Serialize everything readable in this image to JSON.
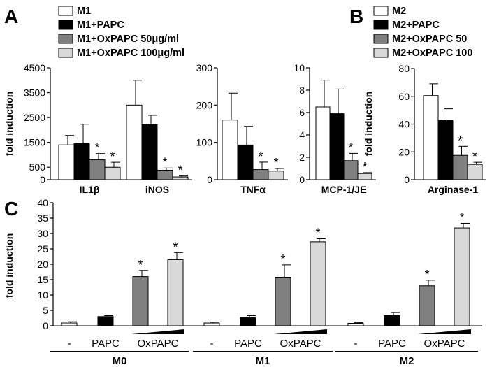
{
  "panels": {
    "A": "A",
    "B": "B",
    "C": "C"
  },
  "colors": {
    "white": "#ffffff",
    "black": "#000000",
    "darkgray": "#808080",
    "lightgray": "#d9d9d9"
  },
  "legend_A": [
    {
      "label": "M1",
      "color": "white"
    },
    {
      "label": "M1+PAPC",
      "color": "black"
    },
    {
      "label": "M1+OxPAPC 50μg/ml",
      "color": "darkgray"
    },
    {
      "label": "M1+OxPAPC 100μg/ml",
      "color": "lightgray"
    }
  ],
  "legend_B": [
    {
      "label": "M2",
      "color": "white"
    },
    {
      "label": "M2+PAPC",
      "color": "black"
    },
    {
      "label": "M2+OxPAPC 50",
      "color": "darkgray"
    },
    {
      "label": "M2+OxPAPC 100",
      "color": "lightgray"
    }
  ],
  "chart_data": [
    {
      "id": "A1",
      "type": "bar",
      "ylabel": "fold induction",
      "ylim": [
        0,
        4500
      ],
      "yticks": [
        0,
        500,
        1500,
        2500,
        3500,
        4500
      ],
      "categories": [
        "IL1β",
        "iNOS"
      ],
      "series": [
        {
          "name": "M1",
          "values": [
            1400,
            3000
          ],
          "errors": [
            380,
            1000
          ],
          "star": [
            false,
            false
          ]
        },
        {
          "name": "M1+PAPC",
          "values": [
            1450,
            2230
          ],
          "errors": [
            780,
            360
          ],
          "star": [
            false,
            false
          ]
        },
        {
          "name": "M1+OxPAPC 50μg/ml",
          "values": [
            800,
            380
          ],
          "errors": [
            250,
            90
          ],
          "star": [
            true,
            true
          ]
        },
        {
          "name": "M1+OxPAPC 100μg/ml",
          "values": [
            500,
            110
          ],
          "errors": [
            200,
            40
          ],
          "star": [
            true,
            true
          ]
        }
      ]
    },
    {
      "id": "A2",
      "type": "bar",
      "ylim": [
        0,
        300
      ],
      "yticks": [
        0,
        100,
        200,
        300
      ],
      "categories": [
        "TNFα"
      ],
      "series": [
        {
          "name": "M1",
          "values": [
            160
          ],
          "errors": [
            72
          ],
          "star": [
            false
          ]
        },
        {
          "name": "M1+PAPC",
          "values": [
            93
          ],
          "errors": [
            50
          ],
          "star": [
            false
          ]
        },
        {
          "name": "M1+OxPAPC 50μg/ml",
          "values": [
            27
          ],
          "errors": [
            20
          ],
          "star": [
            true
          ]
        },
        {
          "name": "M1+OxPAPC 100μg/ml",
          "values": [
            23
          ],
          "errors": [
            7
          ],
          "star": [
            true
          ]
        }
      ]
    },
    {
      "id": "A3",
      "type": "bar",
      "ylim": [
        0,
        10
      ],
      "yticks": [
        0,
        2,
        4,
        6,
        8,
        10
      ],
      "categories": [
        "MCP-1/JE"
      ],
      "series": [
        {
          "name": "M1",
          "values": [
            6.5
          ],
          "errors": [
            2.4
          ],
          "star": [
            false
          ]
        },
        {
          "name": "M1+PAPC",
          "values": [
            5.9
          ],
          "errors": [
            2.2
          ],
          "star": [
            false
          ]
        },
        {
          "name": "M1+OxPAPC 50μg/ml",
          "values": [
            1.7
          ],
          "errors": [
            0.65
          ],
          "star": [
            true
          ]
        },
        {
          "name": "M1+OxPAPC 100μg/ml",
          "values": [
            0.55
          ],
          "errors": [
            0.08
          ],
          "star": [
            true
          ]
        }
      ]
    },
    {
      "id": "B",
      "type": "bar",
      "ylabel": "fold induction",
      "ylim": [
        0,
        80
      ],
      "yticks": [
        0,
        20,
        40,
        60,
        80
      ],
      "categories": [
        "Arginase-1"
      ],
      "series": [
        {
          "name": "M2",
          "values": [
            60.5
          ],
          "errors": [
            8.5
          ],
          "star": [
            false
          ]
        },
        {
          "name": "M2+PAPC",
          "values": [
            42.5
          ],
          "errors": [
            8.5
          ],
          "star": [
            false
          ]
        },
        {
          "name": "M2+OxPAPC 50",
          "values": [
            17.5
          ],
          "errors": [
            6.5
          ],
          "star": [
            true
          ]
        },
        {
          "name": "M2+OxPAPC 100",
          "values": [
            11
          ],
          "errors": [
            1.5
          ],
          "star": [
            true
          ]
        }
      ]
    },
    {
      "id": "C",
      "type": "bar",
      "ylabel": "fold induction",
      "ylim": [
        0,
        40
      ],
      "yticks": [
        0,
        5,
        10,
        15,
        20,
        25,
        30,
        35,
        40
      ],
      "groups": [
        "M0",
        "M1",
        "M2"
      ],
      "conditions": [
        "-",
        "PAPC",
        "OxPAPC"
      ],
      "bar_colors": [
        "white",
        "black",
        "darkgray",
        "lightgray"
      ],
      "values": [
        [
          0.9,
          3.0,
          16.0,
          21.5
        ],
        [
          0.9,
          2.6,
          15.8,
          27.3
        ],
        [
          0.8,
          3.3,
          13.0,
          31.8
        ]
      ],
      "errors": [
        [
          0.4,
          0.3,
          2.0,
          2.3
        ],
        [
          0.3,
          0.7,
          4.0,
          1.0
        ],
        [
          0.2,
          1.0,
          1.8,
          1.5
        ]
      ],
      "star": [
        [
          false,
          false,
          true,
          true
        ],
        [
          false,
          false,
          true,
          true
        ],
        [
          false,
          false,
          true,
          true
        ]
      ]
    }
  ]
}
